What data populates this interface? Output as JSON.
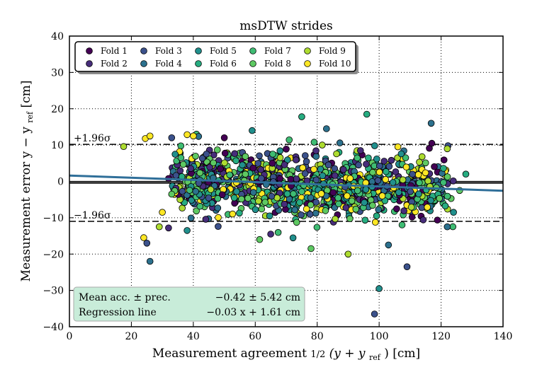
{
  "chart_data": {
    "type": "scatter",
    "title": "msDTW strides",
    "xlabel_pre": "Measurement agreement ",
    "xlabel_frac": "1/2",
    "xlabel_expr": "(y + y",
    "xlabel_sub": "ref",
    "xlabel_post": ") [cm]",
    "ylabel_pre": "Measurement error y − y",
    "ylabel_sub": "ref",
    "ylabel_post": " [cm]",
    "xlim": [
      0,
      140
    ],
    "ylim": [
      -40,
      40
    ],
    "xticks": [
      "0",
      "20",
      "40",
      "60",
      "80",
      "100",
      "120",
      "140"
    ],
    "yticks": [
      "−40",
      "−30",
      "−20",
      "−10",
      "0",
      "10",
      "20",
      "30",
      "40"
    ],
    "grid": true,
    "mean_bias": -0.42,
    "loa_upper": 10.2,
    "loa_lower": -11.0,
    "upper_label": "+1.96σ",
    "lower_label": "−1.96σ",
    "regression": {
      "slope": -0.03,
      "intercept": 1.61,
      "color": "#2f6f99"
    },
    "legend": {
      "position": "top-left",
      "entries": [
        {
          "name": "Fold 1",
          "color": "#440154"
        },
        {
          "name": "Fold 2",
          "color": "#472d7b"
        },
        {
          "name": "Fold 3",
          "color": "#3b518b"
        },
        {
          "name": "Fold 4",
          "color": "#2c718e"
        },
        {
          "name": "Fold 5",
          "color": "#21908d"
        },
        {
          "name": "Fold 6",
          "color": "#27ad81"
        },
        {
          "name": "Fold 7",
          "color": "#3fbc73"
        },
        {
          "name": "Fold 8",
          "color": "#5ec962"
        },
        {
          "name": "Fold 9",
          "color": "#addc30"
        },
        {
          "name": "Fold 10",
          "color": "#fde725"
        }
      ]
    },
    "stats_box": {
      "rows": [
        {
          "label": "Mean acc. ± prec.",
          "value": "−0.42 ± 5.42 cm"
        },
        {
          "label": "Regression line",
          "value": "−0.03 x + 1.61 cm"
        }
      ],
      "background": "#c8ecd9"
    },
    "points": [
      {
        "fold": 10,
        "x": 24.5,
        "y": 11.8
      },
      {
        "fold": 10,
        "x": 26.0,
        "y": 12.5
      },
      {
        "fold": 9,
        "x": 17.5,
        "y": 9.6
      },
      {
        "fold": 8,
        "x": 33.0,
        "y": -3.5
      },
      {
        "fold": 10,
        "x": 24.0,
        "y": -15.5
      },
      {
        "fold": 3,
        "x": 25.0,
        "y": -17.0
      },
      {
        "fold": 4,
        "x": 26.0,
        "y": -22.0
      },
      {
        "fold": 10,
        "x": 30.0,
        "y": -8.5
      },
      {
        "fold": 9,
        "x": 29.0,
        "y": -12.5
      },
      {
        "fold": 2,
        "x": 32.0,
        "y": -12.8
      },
      {
        "fold": 3,
        "x": 33.0,
        "y": 12.0
      },
      {
        "fold": 10,
        "x": 40.0,
        "y": 12.5
      },
      {
        "fold": 1,
        "x": 32.0,
        "y": 0.8
      },
      {
        "fold": 7,
        "x": 36.0,
        "y": 6.5
      },
      {
        "fold": 5,
        "x": 38.0,
        "y": -13.5
      },
      {
        "fold": 6,
        "x": 75.0,
        "y": 17.8
      },
      {
        "fold": 6,
        "x": 96.0,
        "y": 18.5
      },
      {
        "fold": 5,
        "x": 59.0,
        "y": 14.0
      },
      {
        "fold": 4,
        "x": 83.0,
        "y": 14.5
      },
      {
        "fold": 1,
        "x": 50.0,
        "y": 12.0
      },
      {
        "fold": 2,
        "x": 65.0,
        "y": -14.5
      },
      {
        "fold": 8,
        "x": 78.0,
        "y": -18.5
      },
      {
        "fold": 9,
        "x": 90.0,
        "y": -20.0
      },
      {
        "fold": 4,
        "x": 103.0,
        "y": -17.5
      },
      {
        "fold": 3,
        "x": 109.0,
        "y": -23.5
      },
      {
        "fold": 5,
        "x": 100.0,
        "y": -29.5
      },
      {
        "fold": 3,
        "x": 98.5,
        "y": -36.5
      },
      {
        "fold": 4,
        "x": 122.0,
        "y": -12.5
      },
      {
        "fold": 8,
        "x": 126.0,
        "y": -2.5
      },
      {
        "fold": 6,
        "x": 128.0,
        "y": 2.0
      },
      {
        "fold": 5,
        "x": 124.0,
        "y": -8.5
      },
      {
        "fold": 9,
        "x": 122.0,
        "y": 9.0
      },
      {
        "fold": 1,
        "x": 117.0,
        "y": 10.5
      },
      {
        "fold": 10,
        "x": 101.0,
        "y": -4.0
      }
    ]
  }
}
